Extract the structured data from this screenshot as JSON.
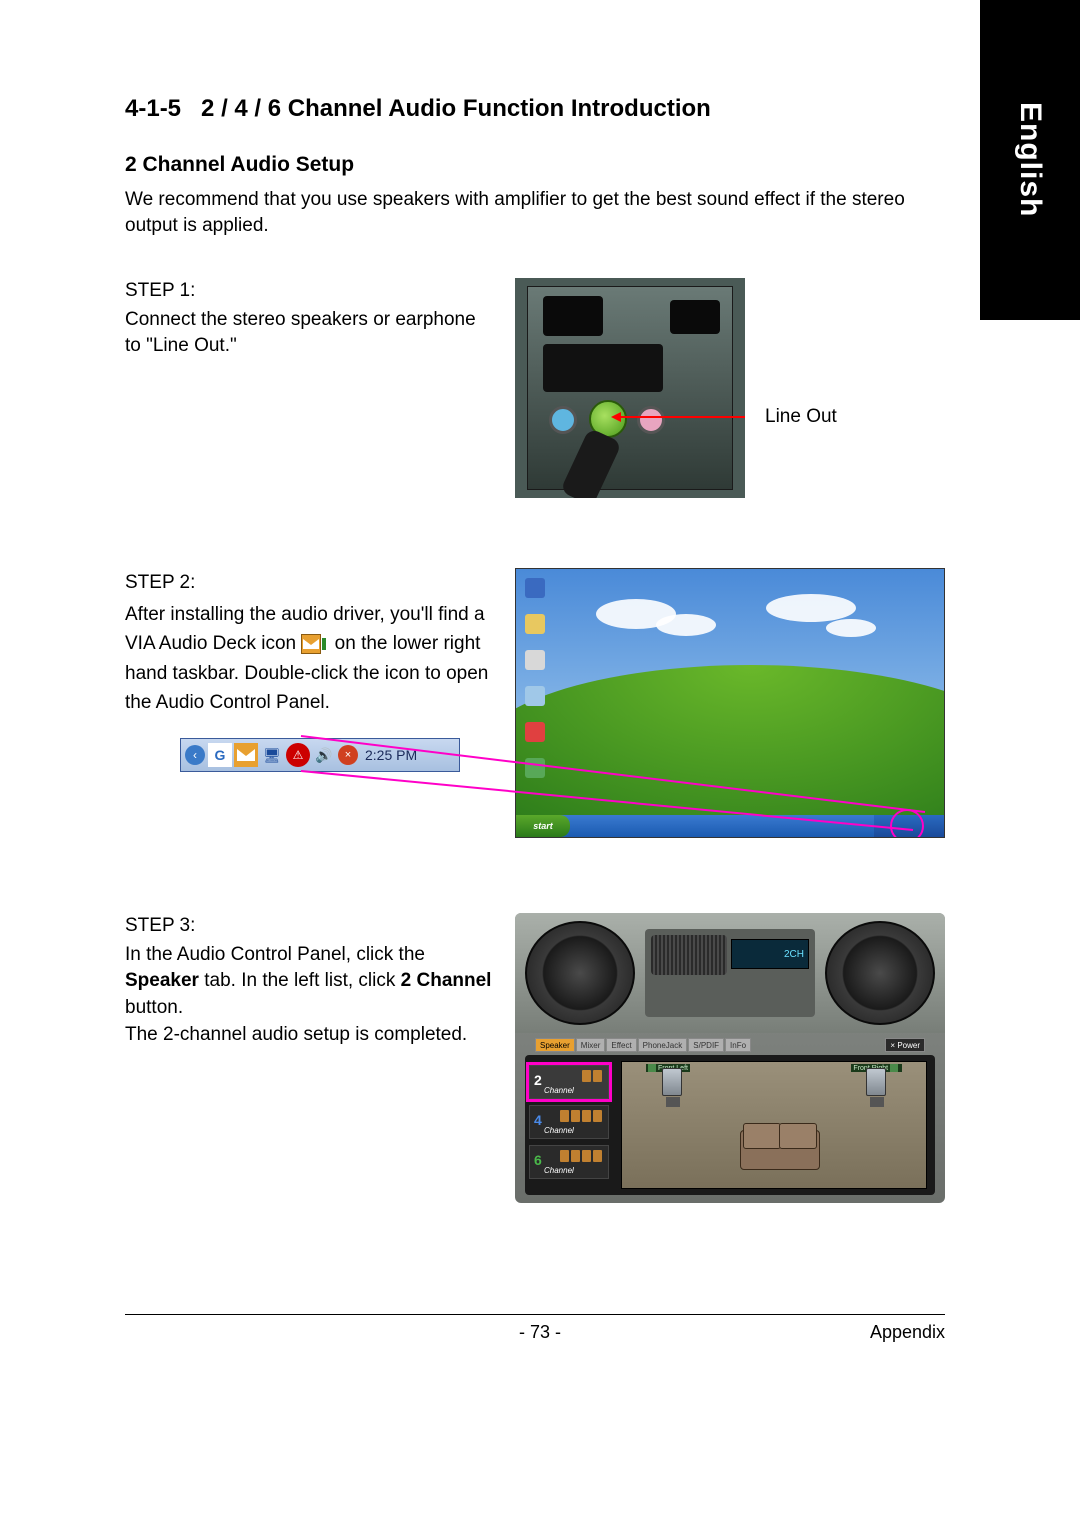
{
  "sideTab": "English",
  "sectionNumber": "4-1-5",
  "sectionTitle": "2 / 4 / 6 Channel Audio Function Introduction",
  "subsectionTitle": "2 Channel Audio Setup",
  "introText": "We recommend that you use speakers with amplifier to get the best sound effect if the stereo output is applied.",
  "step1": {
    "label": "STEP 1:",
    "text": "Connect the stereo speakers or earphone to \"Line Out.\"",
    "callout": "Line Out"
  },
  "step2": {
    "label": "STEP 2:",
    "text_a": "After installing the audio driver, you'll find a VIA Audio Deck icon ",
    "text_b": " on the lower right hand taskbar. Double-click the icon to open the Audio Control Panel.",
    "taskbar": {
      "g": "G",
      "time": "2:25 PM"
    },
    "desktop": {
      "start": "start"
    }
  },
  "step3": {
    "label": "STEP 3:",
    "text_a": "In the Audio Control Panel, click the ",
    "bold_a": "Speaker",
    "text_b": " tab. In the left list, click ",
    "bold_b": "2 Channel",
    "text_c": " button.",
    "text_d": "The 2-channel audio setup is completed.",
    "deck": {
      "lcd": "2CH",
      "tabs": [
        "Speaker",
        "Mixer",
        "Effect",
        "PhoneJack",
        "S/PDIF",
        "InFo"
      ],
      "power": "× Power",
      "channels": [
        {
          "num": "2",
          "label": "Channel",
          "selected": true,
          "spk": 2
        },
        {
          "num": "4",
          "label": "Channel",
          "selected": false,
          "spk": 4,
          "cls": "num4"
        },
        {
          "num": "6",
          "label": "Channel",
          "selected": false,
          "spk": 6,
          "cls": "num6"
        }
      ],
      "frontLeft": "Front Left",
      "frontRight": "Front Right"
    }
  },
  "footer": {
    "page": "- 73 -",
    "section": "Appendix"
  },
  "colors": {
    "highlight": "#ff00c8",
    "arrow": "#ff0000",
    "deckTabActive": "#e8a030"
  }
}
